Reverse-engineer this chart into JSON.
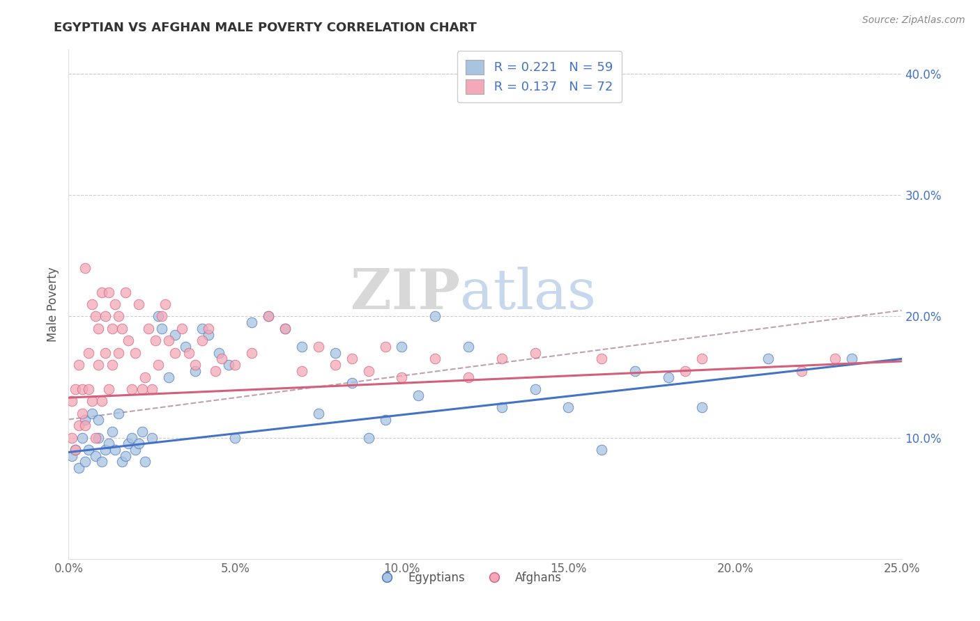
{
  "title": "EGYPTIAN VS AFGHAN MALE POVERTY CORRELATION CHART",
  "source_text": "Source: ZipAtlas.com",
  "ylabel": "Male Poverty",
  "xlim": [
    0.0,
    0.25
  ],
  "ylim": [
    0.0,
    0.42
  ],
  "xtick_labels": [
    "0.0%",
    "5.0%",
    "10.0%",
    "15.0%",
    "20.0%",
    "25.0%"
  ],
  "xtick_values": [
    0.0,
    0.05,
    0.1,
    0.15,
    0.2,
    0.25
  ],
  "ytick_labels": [
    "10.0%",
    "20.0%",
    "30.0%",
    "40.0%"
  ],
  "ytick_values": [
    0.1,
    0.2,
    0.3,
    0.4
  ],
  "egyptian_color": "#a8c4e0",
  "afghan_color": "#f4a8b8",
  "egyptian_line_color": "#4472c4",
  "afghan_line_color": "#d45f7a",
  "trend_line_color": "#c0a0b0",
  "R_egyptian": 0.221,
  "N_egyptian": 59,
  "R_afghan": 0.137,
  "N_afghan": 72,
  "legend_label_egyptian": "Egyptians",
  "legend_label_afghan": "Afghans",
  "watermark_zip": "ZIP",
  "watermark_atlas": "atlas",
  "egyptian_x": [
    0.001,
    0.002,
    0.003,
    0.004,
    0.005,
    0.005,
    0.006,
    0.007,
    0.008,
    0.009,
    0.009,
    0.01,
    0.011,
    0.012,
    0.013,
    0.014,
    0.015,
    0.016,
    0.017,
    0.018,
    0.019,
    0.02,
    0.021,
    0.022,
    0.023,
    0.025,
    0.027,
    0.028,
    0.03,
    0.032,
    0.035,
    0.038,
    0.04,
    0.042,
    0.045,
    0.048,
    0.05,
    0.055,
    0.06,
    0.065,
    0.07,
    0.075,
    0.08,
    0.085,
    0.09,
    0.095,
    0.1,
    0.105,
    0.11,
    0.12,
    0.13,
    0.14,
    0.15,
    0.16,
    0.17,
    0.18,
    0.19,
    0.21,
    0.235
  ],
  "egyptian_y": [
    0.085,
    0.09,
    0.075,
    0.1,
    0.08,
    0.115,
    0.09,
    0.12,
    0.085,
    0.1,
    0.115,
    0.08,
    0.09,
    0.095,
    0.105,
    0.09,
    0.12,
    0.08,
    0.085,
    0.095,
    0.1,
    0.09,
    0.095,
    0.105,
    0.08,
    0.1,
    0.2,
    0.19,
    0.15,
    0.185,
    0.175,
    0.155,
    0.19,
    0.185,
    0.17,
    0.16,
    0.1,
    0.195,
    0.2,
    0.19,
    0.175,
    0.12,
    0.17,
    0.145,
    0.1,
    0.115,
    0.175,
    0.135,
    0.2,
    0.175,
    0.125,
    0.14,
    0.125,
    0.09,
    0.155,
    0.15,
    0.125,
    0.165,
    0.165
  ],
  "afghan_x": [
    0.001,
    0.001,
    0.002,
    0.002,
    0.003,
    0.003,
    0.004,
    0.004,
    0.005,
    0.005,
    0.006,
    0.006,
    0.007,
    0.007,
    0.008,
    0.008,
    0.009,
    0.009,
    0.01,
    0.01,
    0.011,
    0.011,
    0.012,
    0.012,
    0.013,
    0.013,
    0.014,
    0.015,
    0.015,
    0.016,
    0.017,
    0.018,
    0.019,
    0.02,
    0.021,
    0.022,
    0.023,
    0.024,
    0.025,
    0.026,
    0.027,
    0.028,
    0.029,
    0.03,
    0.032,
    0.034,
    0.036,
    0.038,
    0.04,
    0.042,
    0.044,
    0.046,
    0.05,
    0.055,
    0.06,
    0.065,
    0.07,
    0.075,
    0.08,
    0.085,
    0.09,
    0.095,
    0.1,
    0.11,
    0.12,
    0.13,
    0.14,
    0.16,
    0.185,
    0.19,
    0.22,
    0.23
  ],
  "afghan_y": [
    0.1,
    0.13,
    0.09,
    0.14,
    0.11,
    0.16,
    0.12,
    0.14,
    0.24,
    0.11,
    0.14,
    0.17,
    0.13,
    0.21,
    0.1,
    0.2,
    0.19,
    0.16,
    0.13,
    0.22,
    0.17,
    0.2,
    0.14,
    0.22,
    0.19,
    0.16,
    0.21,
    0.17,
    0.2,
    0.19,
    0.22,
    0.18,
    0.14,
    0.17,
    0.21,
    0.14,
    0.15,
    0.19,
    0.14,
    0.18,
    0.16,
    0.2,
    0.21,
    0.18,
    0.17,
    0.19,
    0.17,
    0.16,
    0.18,
    0.19,
    0.155,
    0.165,
    0.16,
    0.17,
    0.2,
    0.19,
    0.155,
    0.175,
    0.16,
    0.165,
    0.155,
    0.175,
    0.15,
    0.165,
    0.15,
    0.165,
    0.17,
    0.165,
    0.155,
    0.165,
    0.155,
    0.165
  ]
}
